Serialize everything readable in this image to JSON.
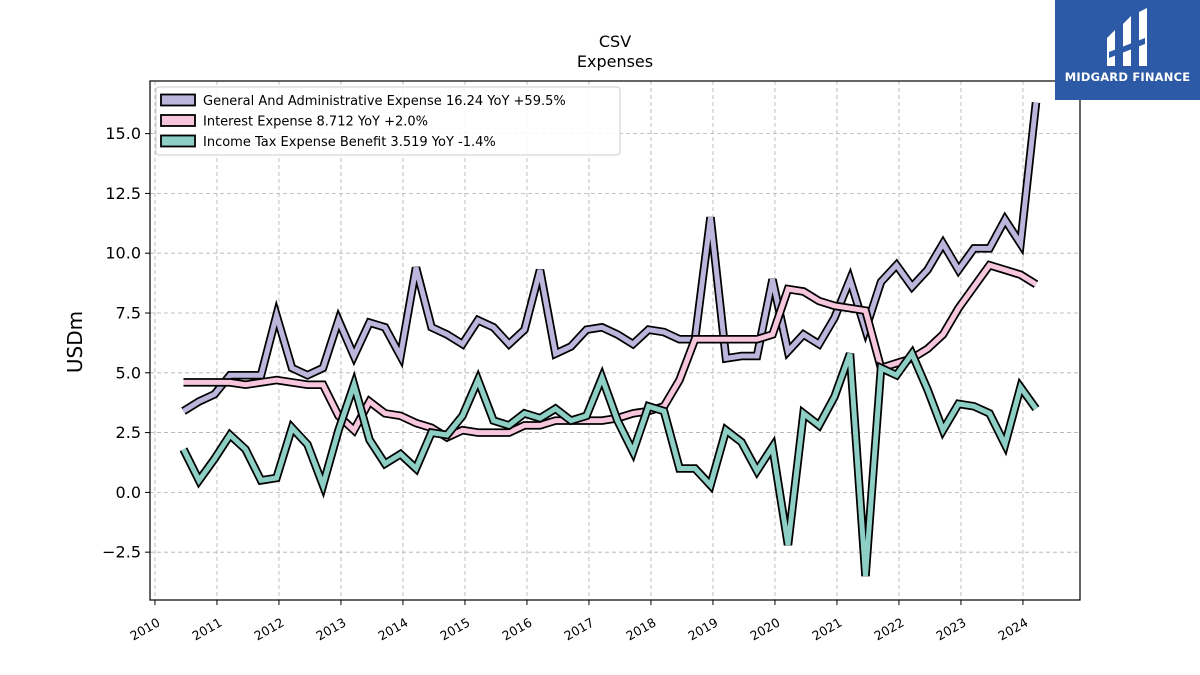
{
  "brand": {
    "name": "MIDGARD FINANCE",
    "color": "#2c5aa6"
  },
  "chart_data": {
    "type": "line",
    "title": "CSV",
    "subtitle": "Expenses",
    "xlabel": "",
    "ylabel": "USDm",
    "xlim": [
      2009.92,
      2024.92
    ],
    "ylim": [
      -4.5,
      17.2
    ],
    "yticks": [
      -2.5,
      0.0,
      2.5,
      5.0,
      7.5,
      10.0,
      12.5,
      15.0
    ],
    "xticks": [
      "2010",
      "2011",
      "2012",
      "2013",
      "2014",
      "2015",
      "2016",
      "2017",
      "2018",
      "2019",
      "2020",
      "2021",
      "2022",
      "2023",
      "2024"
    ],
    "grid": true,
    "legend_position": "top-left",
    "x": [
      2010.46,
      2010.71,
      2010.96,
      2011.21,
      2011.46,
      2011.71,
      2011.96,
      2012.21,
      2012.46,
      2012.71,
      2012.96,
      2013.21,
      2013.46,
      2013.71,
      2013.96,
      2014.21,
      2014.46,
      2014.71,
      2014.96,
      2015.21,
      2015.46,
      2015.71,
      2015.96,
      2016.21,
      2016.46,
      2016.71,
      2016.96,
      2017.21,
      2017.46,
      2017.71,
      2017.96,
      2018.21,
      2018.46,
      2018.71,
      2018.96,
      2019.21,
      2019.46,
      2019.71,
      2019.96,
      2020.21,
      2020.46,
      2020.71,
      2020.96,
      2021.21,
      2021.46,
      2021.71,
      2021.96,
      2022.21,
      2022.46,
      2022.71,
      2022.96,
      2023.21,
      2023.46,
      2023.71,
      2023.96,
      2024.21
    ],
    "series": [
      {
        "name": "General And Administrative Expense",
        "legend": "General And Administrative Expense  16.24 YoY +59.5%",
        "color": "#bcb6dc",
        "values": [
          3.4,
          3.8,
          4.1,
          4.9,
          4.9,
          4.9,
          7.4,
          5.2,
          4.9,
          5.2,
          7.2,
          5.7,
          7.1,
          6.9,
          5.7,
          9.4,
          6.9,
          6.6,
          6.2,
          7.2,
          6.9,
          6.2,
          6.8,
          9.3,
          5.8,
          6.1,
          6.8,
          6.9,
          6.6,
          6.2,
          6.8,
          6.7,
          6.4,
          6.4,
          11.5,
          5.6,
          5.7,
          5.7,
          8.9,
          5.9,
          6.6,
          6.2,
          7.3,
          8.9,
          6.8,
          8.8,
          9.5,
          8.6,
          9.3,
          10.4,
          9.3,
          10.2,
          10.2,
          11.4,
          10.4,
          16.3
        ]
      },
      {
        "name": "Interest Expense",
        "legend": "Interest Expense  8.712 YoY +2.0%",
        "color": "#f6c6dd",
        "values": [
          4.6,
          4.6,
          4.6,
          4.6,
          4.5,
          4.6,
          4.7,
          4.6,
          4.5,
          4.5,
          3.2,
          2.6,
          3.8,
          3.3,
          3.2,
          2.9,
          2.7,
          2.3,
          2.6,
          2.5,
          2.5,
          2.5,
          2.8,
          2.8,
          3.0,
          3.0,
          3.0,
          3.0,
          3.1,
          3.3,
          3.4,
          3.6,
          4.7,
          6.4,
          6.4,
          6.4,
          6.4,
          6.4,
          6.6,
          8.5,
          8.4,
          8.0,
          7.8,
          7.7,
          7.6,
          5.2,
          5.4,
          5.6,
          6.0,
          6.6,
          7.7,
          8.6,
          9.5,
          9.3,
          9.1,
          8.7
        ]
      },
      {
        "name": "Income Tax Expense Benefit",
        "legend": "Income Tax Expense Benefit  3.519 YoY -1.4%",
        "color": "#8dcfc4",
        "values": [
          1.8,
          0.5,
          1.4,
          2.4,
          1.8,
          0.5,
          0.6,
          2.7,
          2.0,
          0.3,
          2.6,
          4.5,
          2.2,
          1.2,
          1.6,
          1.0,
          2.5,
          2.4,
          3.2,
          4.7,
          3.0,
          2.8,
          3.3,
          3.1,
          3.5,
          3.0,
          3.2,
          4.8,
          3.0,
          1.7,
          3.6,
          3.4,
          1.0,
          1.0,
          0.3,
          2.6,
          2.1,
          0.9,
          1.9,
          -2.2,
          3.3,
          2.8,
          4.0,
          5.8,
          -3.5,
          5.2,
          4.9,
          5.8,
          4.3,
          2.6,
          3.7,
          3.6,
          3.3,
          2.0,
          4.4,
          3.5
        ]
      }
    ]
  }
}
